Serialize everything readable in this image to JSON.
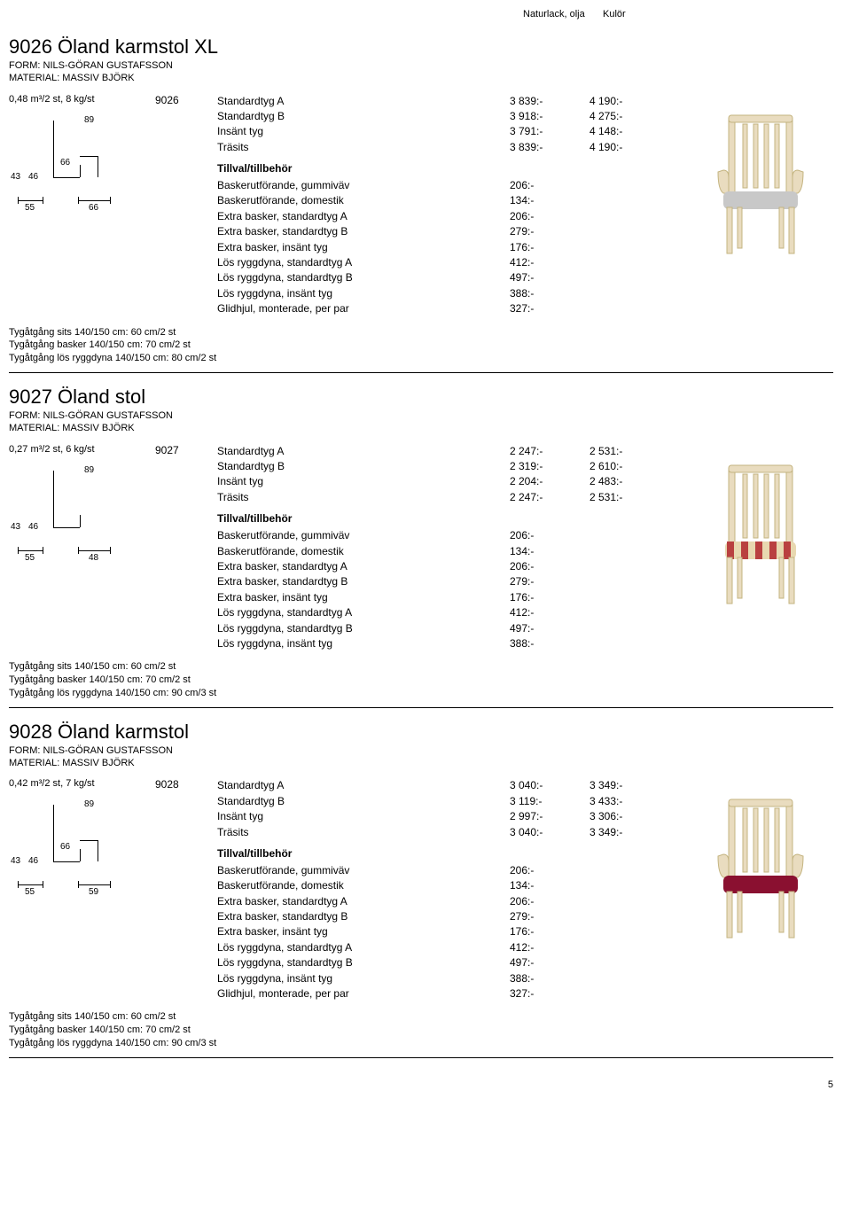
{
  "header": {
    "col1": "Naturlack, olja",
    "col2": "Kulör"
  },
  "page_number": "5",
  "products": [
    {
      "title": "9026 Öland karmstol XL",
      "form": "FORM: NILS-GÖRAN GUSTAFSSON",
      "material": "MATERIAL: MASSIV BJÖRK",
      "spec": "0,48 m³/2 st, 8 kg/st",
      "code": "9026",
      "dims": {
        "h": "89",
        "arm": "66",
        "sh1": "43",
        "sh2": "46",
        "w1": "55",
        "w2": "66"
      },
      "variants": [
        {
          "name": "Standardtyg A",
          "p1": "3 839:-",
          "p2": "4 190:-"
        },
        {
          "name": "Standardtyg B",
          "p1": "3 918:-",
          "p2": "4 275:-"
        },
        {
          "name": "Insänt tyg",
          "p1": "3 791:-",
          "p2": "4 148:-"
        },
        {
          "name": "Träsits",
          "p1": "3 839:-",
          "p2": "4 190:-"
        }
      ],
      "addon_header": "Tillval/tillbehör",
      "addons": [
        {
          "name": "Baskerutförande, gummiväv",
          "p1": "206:-"
        },
        {
          "name": "Baskerutförande, domestik",
          "p1": "134:-"
        },
        {
          "name": "Extra basker, standardtyg A",
          "p1": "206:-"
        },
        {
          "name": "Extra basker, standardtyg B",
          "p1": "279:-"
        },
        {
          "name": "Extra basker, insänt tyg",
          "p1": "176:-"
        },
        {
          "name": "Lös ryggdyna, standardtyg A",
          "p1": "412:-"
        },
        {
          "name": "Lös ryggdyna, standardtyg B",
          "p1": "497:-"
        },
        {
          "name": "Lös ryggdyna, insänt tyg",
          "p1": "388:-"
        },
        {
          "name": "Glidhjul, monterade, per par",
          "p1": "327:-"
        }
      ],
      "fabric": [
        "Tygåtgång sits 140/150 cm: 60 cm/2 st",
        "Tygåtgång basker 140/150 cm: 70 cm/2 st",
        "Tygåtgång lös ryggdyna 140/150 cm: 80 cm/2 st"
      ],
      "chair": {
        "seat_fill": "#c8c8c8",
        "arms": true
      }
    },
    {
      "title": "9027 Öland stol",
      "form": "FORM: NILS-GÖRAN GUSTAFSSON",
      "material": "MATERIAL: MASSIV BJÖRK",
      "spec": "0,27 m³/2 st, 6 kg/st",
      "code": "9027",
      "dims": {
        "h": "89",
        "arm": "",
        "sh1": "43",
        "sh2": "46",
        "w1": "55",
        "w2": "48"
      },
      "variants": [
        {
          "name": "Standardtyg A",
          "p1": "2 247:-",
          "p2": "2 531:-"
        },
        {
          "name": "Standardtyg B",
          "p1": "2 319:-",
          "p2": "2 610:-"
        },
        {
          "name": "Insänt tyg",
          "p1": "2 204:-",
          "p2": "2 483:-"
        },
        {
          "name": "Träsits",
          "p1": "2 247:-",
          "p2": "2 531:-"
        }
      ],
      "addon_header": "Tillval/tillbehör",
      "addons": [
        {
          "name": "Baskerutförande, gummiväv",
          "p1": "206:-"
        },
        {
          "name": "Baskerutförande, domestik",
          "p1": "134:-"
        },
        {
          "name": "Extra basker, standardtyg A",
          "p1": "206:-"
        },
        {
          "name": "Extra basker, standardtyg B",
          "p1": "279:-"
        },
        {
          "name": "Extra basker, insänt tyg",
          "p1": "176:-"
        },
        {
          "name": "Lös ryggdyna, standardtyg A",
          "p1": "412:-"
        },
        {
          "name": "Lös ryggdyna, standardtyg B",
          "p1": "497:-"
        },
        {
          "name": "Lös ryggdyna, insänt tyg",
          "p1": "388:-"
        }
      ],
      "fabric": [
        "Tygåtgång sits 140/150 cm: 60 cm/2 st",
        "Tygåtgång basker 140/150 cm: 70 cm/2 st",
        "Tygåtgång lös ryggdyna 140/150 cm: 90 cm/3 st"
      ],
      "chair": {
        "seat_fill": "#b94040",
        "stripes": true,
        "arms": false
      }
    },
    {
      "title": "9028 Öland karmstol",
      "form": "FORM: NILS-GÖRAN GUSTAFSSON",
      "material": "MATERIAL: MASSIV BJÖRK",
      "spec": "0,42 m³/2 st, 7 kg/st",
      "code": "9028",
      "dims": {
        "h": "89",
        "arm": "66",
        "sh1": "43",
        "sh2": "46",
        "w1": "55",
        "w2": "59"
      },
      "variants": [
        {
          "name": "Standardtyg A",
          "p1": "3 040:-",
          "p2": "3 349:-"
        },
        {
          "name": "Standardtyg B",
          "p1": "3 119:-",
          "p2": "3 433:-"
        },
        {
          "name": "Insänt tyg",
          "p1": "2 997:-",
          "p2": "3 306:-"
        },
        {
          "name": "Träsits",
          "p1": "3 040:-",
          "p2": "3 349:-"
        }
      ],
      "addon_header": "Tillval/tillbehör",
      "addons": [
        {
          "name": "Baskerutförande, gummiväv",
          "p1": "206:-"
        },
        {
          "name": "Baskerutförande, domestik",
          "p1": "134:-"
        },
        {
          "name": "Extra basker, standardtyg A",
          "p1": "206:-"
        },
        {
          "name": "Extra basker, standardtyg B",
          "p1": "279:-"
        },
        {
          "name": "Extra basker, insänt tyg",
          "p1": "176:-"
        },
        {
          "name": "Lös ryggdyna, standardtyg A",
          "p1": "412:-"
        },
        {
          "name": "Lös ryggdyna, standardtyg B",
          "p1": "497:-"
        },
        {
          "name": "Lös ryggdyna, insänt tyg",
          "p1": "388:-"
        },
        {
          "name": "Glidhjul, monterade, per par",
          "p1": "327:-"
        }
      ],
      "fabric": [
        "Tygåtgång sits 140/150 cm: 60 cm/2 st",
        "Tygåtgång basker 140/150 cm: 70 cm/2 st",
        "Tygåtgång lös ryggdyna 140/150 cm: 90 cm/3 st"
      ],
      "chair": {
        "seat_fill": "#8a1030",
        "arms": true
      }
    }
  ],
  "diagram": {
    "stroke": "#000",
    "wood_fill": "#e9dcbf",
    "wood_stroke": "#c4b480"
  }
}
